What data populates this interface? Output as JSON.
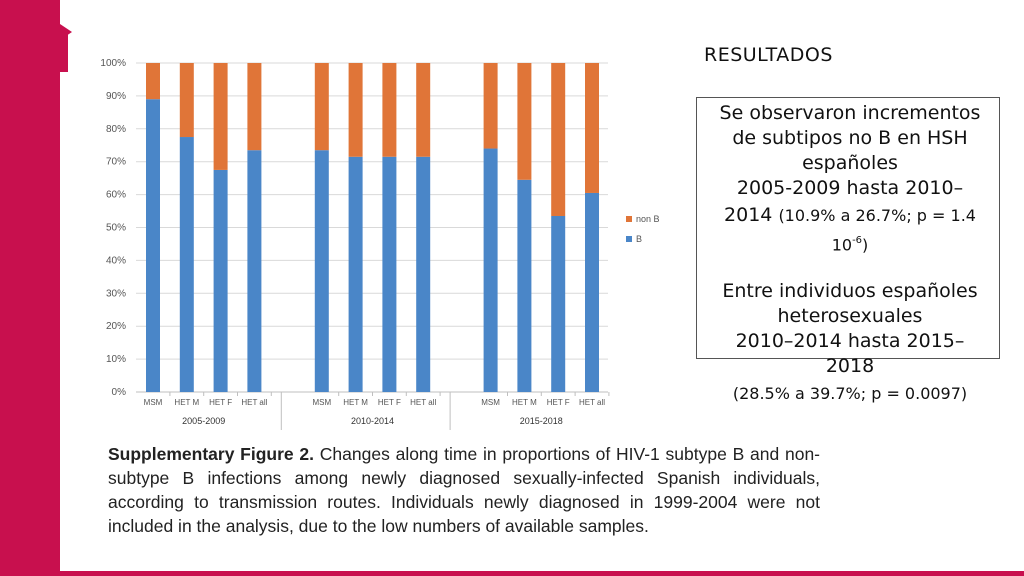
{
  "heading": "RESULTADOS",
  "finding1": {
    "line1": "Se observaron incrementos",
    "line2": "de subtipos no B en HSH",
    "line3": "españoles",
    "line4": "2005-2009 hasta 2010–",
    "line5_main": "2014",
    "line5_small": "(10.9% a 26.7%; p = 1.4",
    "line6_base": "10",
    "line6_exp": "-6",
    "line6_close": ")"
  },
  "finding2": {
    "line1": "Entre individuos españoles",
    "line2": "heterosexuales",
    "line3": "2010–2014 hasta 2015–",
    "line4": "2018",
    "line5": "(28.5% a 39.7%; p = 0.0097)"
  },
  "caption": {
    "label": "Supplementary Figure 2.",
    "text": " Changes along time in proportions of HIV-1 subtype B and non-subtype B infections among newly diagnosed sexually-infected Spanish individuals, according to transmission routes. Individuals newly diagnosed in 1999-2004 were not included in the analysis, due to the low numbers of available samples."
  },
  "colors": {
    "b": "#4a86c8",
    "non_b": "#e07538",
    "accent": "#c8104e",
    "grid": "#d9d9d9"
  },
  "chart_data": {
    "type": "bar",
    "stacked": true,
    "ylim": [
      0,
      100
    ],
    "yticks": [
      "0%",
      "10%",
      "20%",
      "30%",
      "40%",
      "50%",
      "60%",
      "70%",
      "80%",
      "90%",
      "100%"
    ],
    "groups": [
      {
        "label": "2005-2009",
        "categories": [
          "MSM",
          "HET M",
          "HET F",
          "HET all"
        ],
        "b": [
          89,
          77.5,
          67.5,
          73.5
        ]
      },
      {
        "label": "2010-2014",
        "categories": [
          "MSM",
          "HET M",
          "HET F",
          "HET all"
        ],
        "b": [
          73.5,
          71.5,
          71.5,
          71.5
        ]
      },
      {
        "label": "2015-2018",
        "categories": [
          "MSM",
          "HET M",
          "HET F",
          "HET all"
        ],
        "b": [
          74,
          64.5,
          53.5,
          60.5
        ]
      }
    ],
    "series": [
      {
        "name": "B",
        "key": "b"
      },
      {
        "name": "non B",
        "key": "non_b",
        "note": "100 minus B"
      }
    ],
    "legend": [
      "non B",
      "B"
    ],
    "legend_position": "right"
  }
}
